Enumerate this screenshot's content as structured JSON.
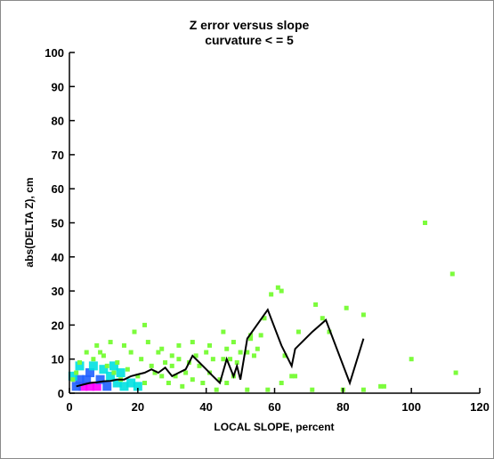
{
  "chart_data": {
    "type": "scatter",
    "title": "Z error versus slope",
    "subtitle": "curvature < = 5",
    "xlabel": "LOCAL SLOPE, percent",
    "ylabel": "abs(DELTA Z), cm",
    "xlim": [
      0,
      120
    ],
    "ylim": [
      0,
      100
    ],
    "x_ticks": [
      0,
      20,
      40,
      60,
      80,
      100,
      120
    ],
    "y_ticks": [
      0,
      10,
      20,
      30,
      40,
      50,
      60,
      70,
      80,
      90,
      100
    ],
    "x_tick_labels": [
      "0",
      "20",
      "40",
      "60",
      "80",
      "100",
      "120"
    ],
    "y_tick_labels": [
      "0",
      "10",
      "20",
      "30",
      "40",
      "50",
      "60",
      "70",
      "80",
      "90",
      "100"
    ],
    "grid": false,
    "colors": {
      "points": "#7cfc3c",
      "mean_line": "#000000",
      "density_low": "#00e0e0",
      "density_mid": "#2060ff",
      "density_high": "#ff00ff"
    },
    "series": [
      {
        "kind": "scatter",
        "points": [
          [
            104,
            50
          ],
          [
            112,
            35
          ],
          [
            113,
            6
          ],
          [
            100,
            10
          ],
          [
            86,
            23
          ],
          [
            86,
            1
          ],
          [
            81,
            25
          ],
          [
            80,
            1
          ],
          [
            92,
            2
          ],
          [
            91,
            2
          ],
          [
            61,
            31
          ],
          [
            59,
            29
          ],
          [
            72,
            26
          ],
          [
            71,
            1
          ],
          [
            76,
            18
          ],
          [
            74,
            22
          ],
          [
            63,
            11
          ],
          [
            65,
            5
          ],
          [
            66,
            5
          ],
          [
            67,
            18
          ],
          [
            57,
            22
          ],
          [
            56,
            17
          ],
          [
            54,
            11
          ],
          [
            53,
            17
          ],
          [
            52,
            12
          ],
          [
            58,
            1
          ],
          [
            62,
            3
          ],
          [
            52,
            1
          ],
          [
            50,
            12
          ],
          [
            49,
            9
          ],
          [
            48,
            5
          ],
          [
            47,
            10
          ],
          [
            46,
            3
          ],
          [
            45,
            10
          ],
          [
            44,
            4
          ],
          [
            43,
            1
          ],
          [
            42,
            10
          ],
          [
            41,
            6
          ],
          [
            40,
            12
          ],
          [
            39,
            3
          ],
          [
            38,
            8
          ],
          [
            37,
            11
          ],
          [
            36,
            4
          ],
          [
            35,
            9
          ],
          [
            34,
            6
          ],
          [
            33,
            2
          ],
          [
            32,
            10
          ],
          [
            31,
            5
          ],
          [
            30,
            8
          ],
          [
            29,
            3
          ],
          [
            28,
            9
          ],
          [
            27,
            5
          ],
          [
            26,
            12
          ],
          [
            25,
            6
          ],
          [
            24,
            8
          ],
          [
            23,
            15
          ],
          [
            22,
            20
          ],
          [
            22,
            3
          ],
          [
            21,
            10
          ],
          [
            20,
            5
          ],
          [
            19,
            18
          ],
          [
            18,
            12
          ],
          [
            17,
            7
          ],
          [
            16,
            14
          ],
          [
            15,
            4
          ],
          [
            14,
            9
          ],
          [
            13,
            6
          ],
          [
            12,
            15
          ],
          [
            11,
            8
          ],
          [
            10,
            11
          ],
          [
            9,
            12
          ],
          [
            8,
            14
          ],
          [
            7,
            10
          ],
          [
            5,
            12
          ],
          [
            3,
            9
          ],
          [
            2,
            6
          ],
          [
            1,
            4
          ],
          [
            45,
            18
          ],
          [
            48,
            15
          ],
          [
            55,
            13
          ],
          [
            27,
            13
          ],
          [
            32,
            14
          ],
          [
            41,
            14
          ],
          [
            46,
            13
          ],
          [
            36,
            15
          ],
          [
            30,
            11
          ],
          [
            53,
            16
          ],
          [
            62,
            30
          ]
        ]
      },
      {
        "kind": "density",
        "bins": [
          {
            "x": 6,
            "y": 2,
            "level": 3
          },
          {
            "x": 4,
            "y": 2,
            "level": 3
          },
          {
            "x": 8,
            "y": 2,
            "level": 3
          },
          {
            "x": 5,
            "y": 4,
            "level": 2
          },
          {
            "x": 9,
            "y": 4,
            "level": 2
          },
          {
            "x": 3,
            "y": 4,
            "level": 2
          },
          {
            "x": 6,
            "y": 6,
            "level": 2
          },
          {
            "x": 11,
            "y": 2,
            "level": 2
          },
          {
            "x": 2,
            "y": 2,
            "level": 2
          },
          {
            "x": 7,
            "y": 8,
            "level": 1
          },
          {
            "x": 12,
            "y": 5,
            "level": 1
          },
          {
            "x": 14,
            "y": 3,
            "level": 1
          },
          {
            "x": 3,
            "y": 8,
            "level": 1
          },
          {
            "x": 10,
            "y": 7,
            "level": 1
          },
          {
            "x": 16,
            "y": 2,
            "level": 1
          },
          {
            "x": 1,
            "y": 5,
            "level": 1
          },
          {
            "x": 15,
            "y": 6,
            "level": 1
          },
          {
            "x": 18,
            "y": 3,
            "level": 1
          },
          {
            "x": 13,
            "y": 8,
            "level": 1
          },
          {
            "x": 20,
            "y": 2,
            "level": 1
          }
        ]
      },
      {
        "kind": "line",
        "points": [
          [
            2,
            2
          ],
          [
            4,
            2.5
          ],
          [
            6,
            3
          ],
          [
            8,
            3.2
          ],
          [
            10,
            3.5
          ],
          [
            12,
            3.6
          ],
          [
            14,
            4
          ],
          [
            16,
            4
          ],
          [
            18,
            5
          ],
          [
            20,
            5.5
          ],
          [
            22,
            6
          ],
          [
            24,
            7
          ],
          [
            26,
            6
          ],
          [
            28,
            7.5
          ],
          [
            30,
            5
          ],
          [
            32,
            6
          ],
          [
            34,
            7
          ],
          [
            36,
            11
          ],
          [
            38,
            9
          ],
          [
            40,
            7
          ],
          [
            42,
            5
          ],
          [
            44,
            3
          ],
          [
            46,
            10
          ],
          [
            48,
            5
          ],
          [
            49,
            8
          ],
          [
            50,
            4
          ],
          [
            52,
            16
          ],
          [
            58,
            24.5
          ],
          [
            62,
            14
          ],
          [
            65,
            8
          ],
          [
            66,
            13
          ],
          [
            71,
            18
          ],
          [
            75,
            21.5
          ],
          [
            82,
            3
          ],
          [
            86,
            16
          ]
        ]
      }
    ]
  }
}
